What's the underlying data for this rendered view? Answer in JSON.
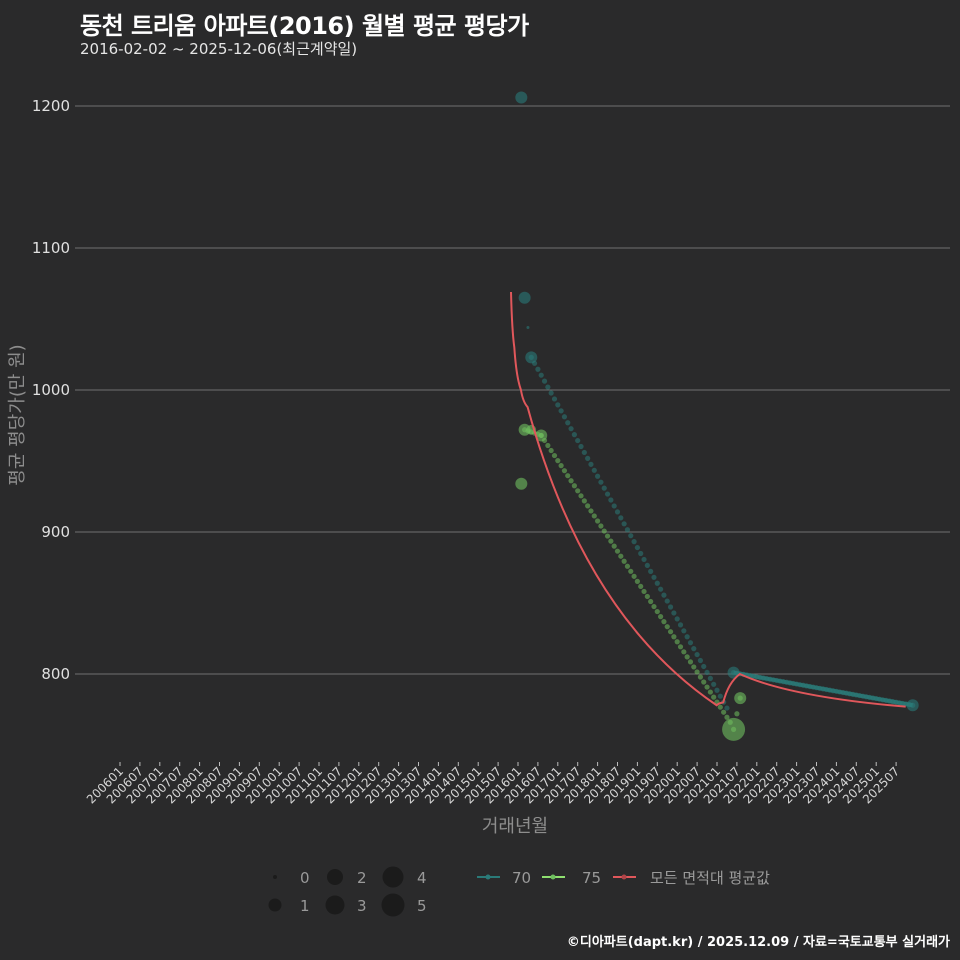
{
  "header": {
    "title": "동천 트리움 아파트(2016) 월별 평균 평당가",
    "subtitle": "2016-02-02 ~ 2025-12-06(최근계약일)"
  },
  "footer": {
    "credit": "©디아파트(dapt.kr) / 2025.12.09 / 자료=국토교통부 실거래가"
  },
  "colors": {
    "background": "#2a2a2b",
    "grid": "#707070",
    "series_70": "#2a7a78",
    "series_75": "#6fbf5f",
    "average": "#e0575b"
  },
  "chart_data": {
    "type": "line",
    "title": "동천 트리움 아파트(2016) 월별 평균 평당가",
    "subtitle": "2016-02-02 ~ 2025-12-06(최근계약일)",
    "xlabel": "거래년월",
    "ylabel": "평균 평당가(만 원)",
    "ylim": [
      742,
      1212
    ],
    "yticks": [
      800,
      900,
      1000,
      1100,
      1200
    ],
    "grid": true,
    "x_ticks": [
      "200601",
      "200607",
      "200701",
      "200707",
      "200801",
      "200807",
      "200901",
      "200907",
      "201001",
      "201007",
      "201101",
      "201107",
      "201201",
      "201207",
      "201301",
      "201307",
      "201401",
      "201407",
      "201501",
      "201507",
      "201601",
      "201607",
      "201701",
      "201707",
      "201801",
      "201807",
      "201901",
      "201907",
      "202001",
      "202007",
      "202101",
      "202107",
      "202201",
      "202207",
      "202301",
      "202307",
      "202401",
      "202407",
      "202501",
      "202507"
    ],
    "series": [
      {
        "name": "70",
        "color": "#2a7a78",
        "points": [
          {
            "x": "201602",
            "y": 1206,
            "count": 2
          },
          {
            "x": "201603",
            "y": 1065,
            "count": 2
          },
          {
            "x": "201604",
            "y": 1044,
            "count": 0
          },
          {
            "x": "201605",
            "y": 1023,
            "count": 2
          },
          {
            "x": "202106",
            "y": 801,
            "count": 2
          },
          {
            "x": "202512",
            "y": 778,
            "count": 2
          }
        ],
        "interpolated_segments": [
          [
            "201605",
            1023,
            "202104",
            776
          ],
          [
            "202106",
            801,
            "202512",
            778
          ]
        ]
      },
      {
        "name": "75",
        "color": "#6fbf5f",
        "points": [
          {
            "x": "201602",
            "y": 934,
            "count": 2
          },
          {
            "x": "201603",
            "y": 972,
            "count": 2
          },
          {
            "x": "201605",
            "y": 972,
            "count": 1
          },
          {
            "x": "201608",
            "y": 968,
            "count": 2
          },
          {
            "x": "202106",
            "y": 761,
            "count": 5
          },
          {
            "x": "202108",
            "y": 783,
            "count": 2
          }
        ],
        "interpolated_segments": [
          [
            "201603",
            972,
            "201608",
            968
          ],
          [
            "201608",
            968,
            "202105",
            766
          ],
          [
            "202106",
            761,
            "202108",
            783
          ]
        ]
      },
      {
        "name": "모든 면적대 평균값",
        "color": "#e0575b",
        "line": [
          [
            "201601",
            1069
          ],
          [
            "201602",
            1030
          ],
          [
            "201604",
            1000
          ],
          [
            "201606",
            988
          ],
          [
            "202103",
            778
          ],
          [
            "202105",
            780
          ],
          [
            "202110",
            800
          ],
          [
            "202512",
            777
          ]
        ]
      }
    ],
    "size_legend": [
      0,
      1,
      2,
      3,
      4,
      5
    ]
  },
  "legend": {
    "sizes": [
      {
        "label": "0"
      },
      {
        "label": "1"
      },
      {
        "label": "2"
      },
      {
        "label": "3"
      },
      {
        "label": "4"
      },
      {
        "label": "5"
      }
    ],
    "series": [
      {
        "label": "70"
      },
      {
        "label": "75"
      },
      {
        "label": "모든 면적대 평균값"
      }
    ]
  }
}
